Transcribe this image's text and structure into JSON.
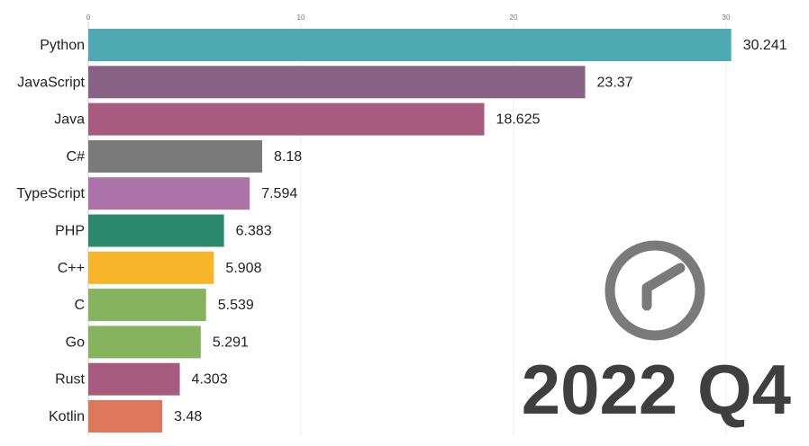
{
  "chart_data": {
    "type": "bar",
    "orientation": "horizontal",
    "period": "2022 Q4",
    "x_ticks": [
      0,
      10,
      20,
      30
    ],
    "xlim": [
      0,
      31
    ],
    "grid": true,
    "categories": [
      "Python",
      "JavaScript",
      "Java",
      "C#",
      "TypeScript",
      "PHP",
      "C++",
      "C",
      "Go",
      "Rust",
      "Kotlin"
    ],
    "values": [
      30.241,
      23.37,
      18.625,
      8.18,
      7.594,
      6.383,
      5.908,
      5.539,
      5.291,
      4.303,
      3.48
    ],
    "value_labels": [
      "30.241",
      "23.37",
      "18.625",
      "8.18",
      "7.594",
      "6.383",
      "5.908",
      "5.539",
      "5.291",
      "4.303",
      "3.48"
    ],
    "colors": [
      "#4eaab2",
      "#876285",
      "#a75b7e",
      "#7a7a7a",
      "#ab73a8",
      "#2b8a6e",
      "#f7b52a",
      "#86b35d",
      "#86b35d",
      "#a75b7e",
      "#df775a"
    ],
    "clock_icon": "clock-icon",
    "clock_color": "#7a7a7a"
  }
}
